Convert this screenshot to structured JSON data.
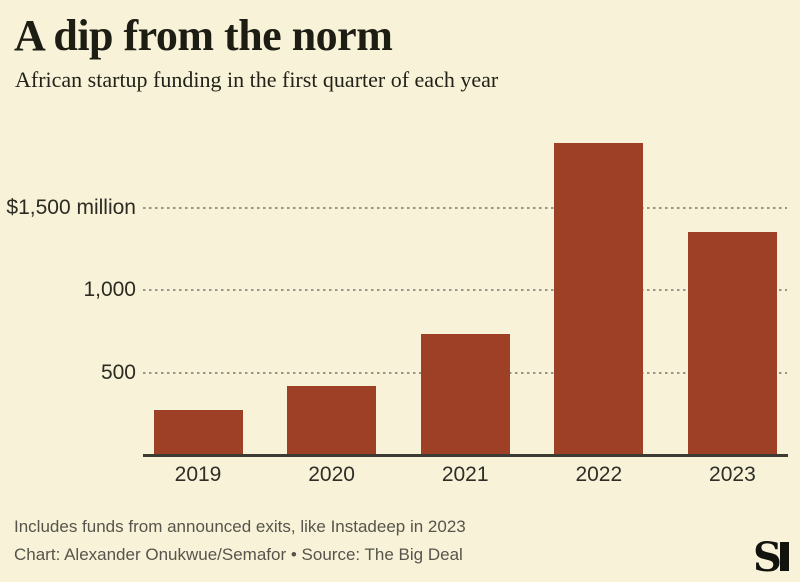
{
  "header": {
    "title": "A dip from the norm",
    "subtitle": "African startup funding in the first quarter of each year"
  },
  "chart_data": {
    "type": "bar",
    "categories": [
      "2019",
      "2020",
      "2021",
      "2022",
      "2023"
    ],
    "values": [
      270,
      420,
      735,
      1890,
      1350
    ],
    "title": "A dip from the norm",
    "subtitle": "African startup funding in the first quarter of each year",
    "unit": "US$ million",
    "yticks": [
      {
        "value": 500,
        "label": "500"
      },
      {
        "value": 1000,
        "label": "1,000"
      },
      {
        "value": 1500,
        "label": "$1,500 million"
      }
    ],
    "ylim": [
      0,
      1975
    ],
    "xlabel": "",
    "ylabel": "",
    "grid": "horizontal-dotted",
    "legend": "none",
    "bar_color": "#9E4026"
  },
  "footer": {
    "note": "Includes funds from announced exits, like Instadeep in 2023",
    "credit": "Chart: Alexander Onukwue/Semafor • Source: The Big Deal"
  },
  "branding": {
    "logo_name": "semafor-logo",
    "logo_letter": "S"
  },
  "colors": {
    "background": "#F8F3D8",
    "bar": "#9E4026",
    "grid": "#98958A",
    "axis": "#3B3B33",
    "text_dark": "#1D1D13",
    "text_muted": "#56544B"
  }
}
